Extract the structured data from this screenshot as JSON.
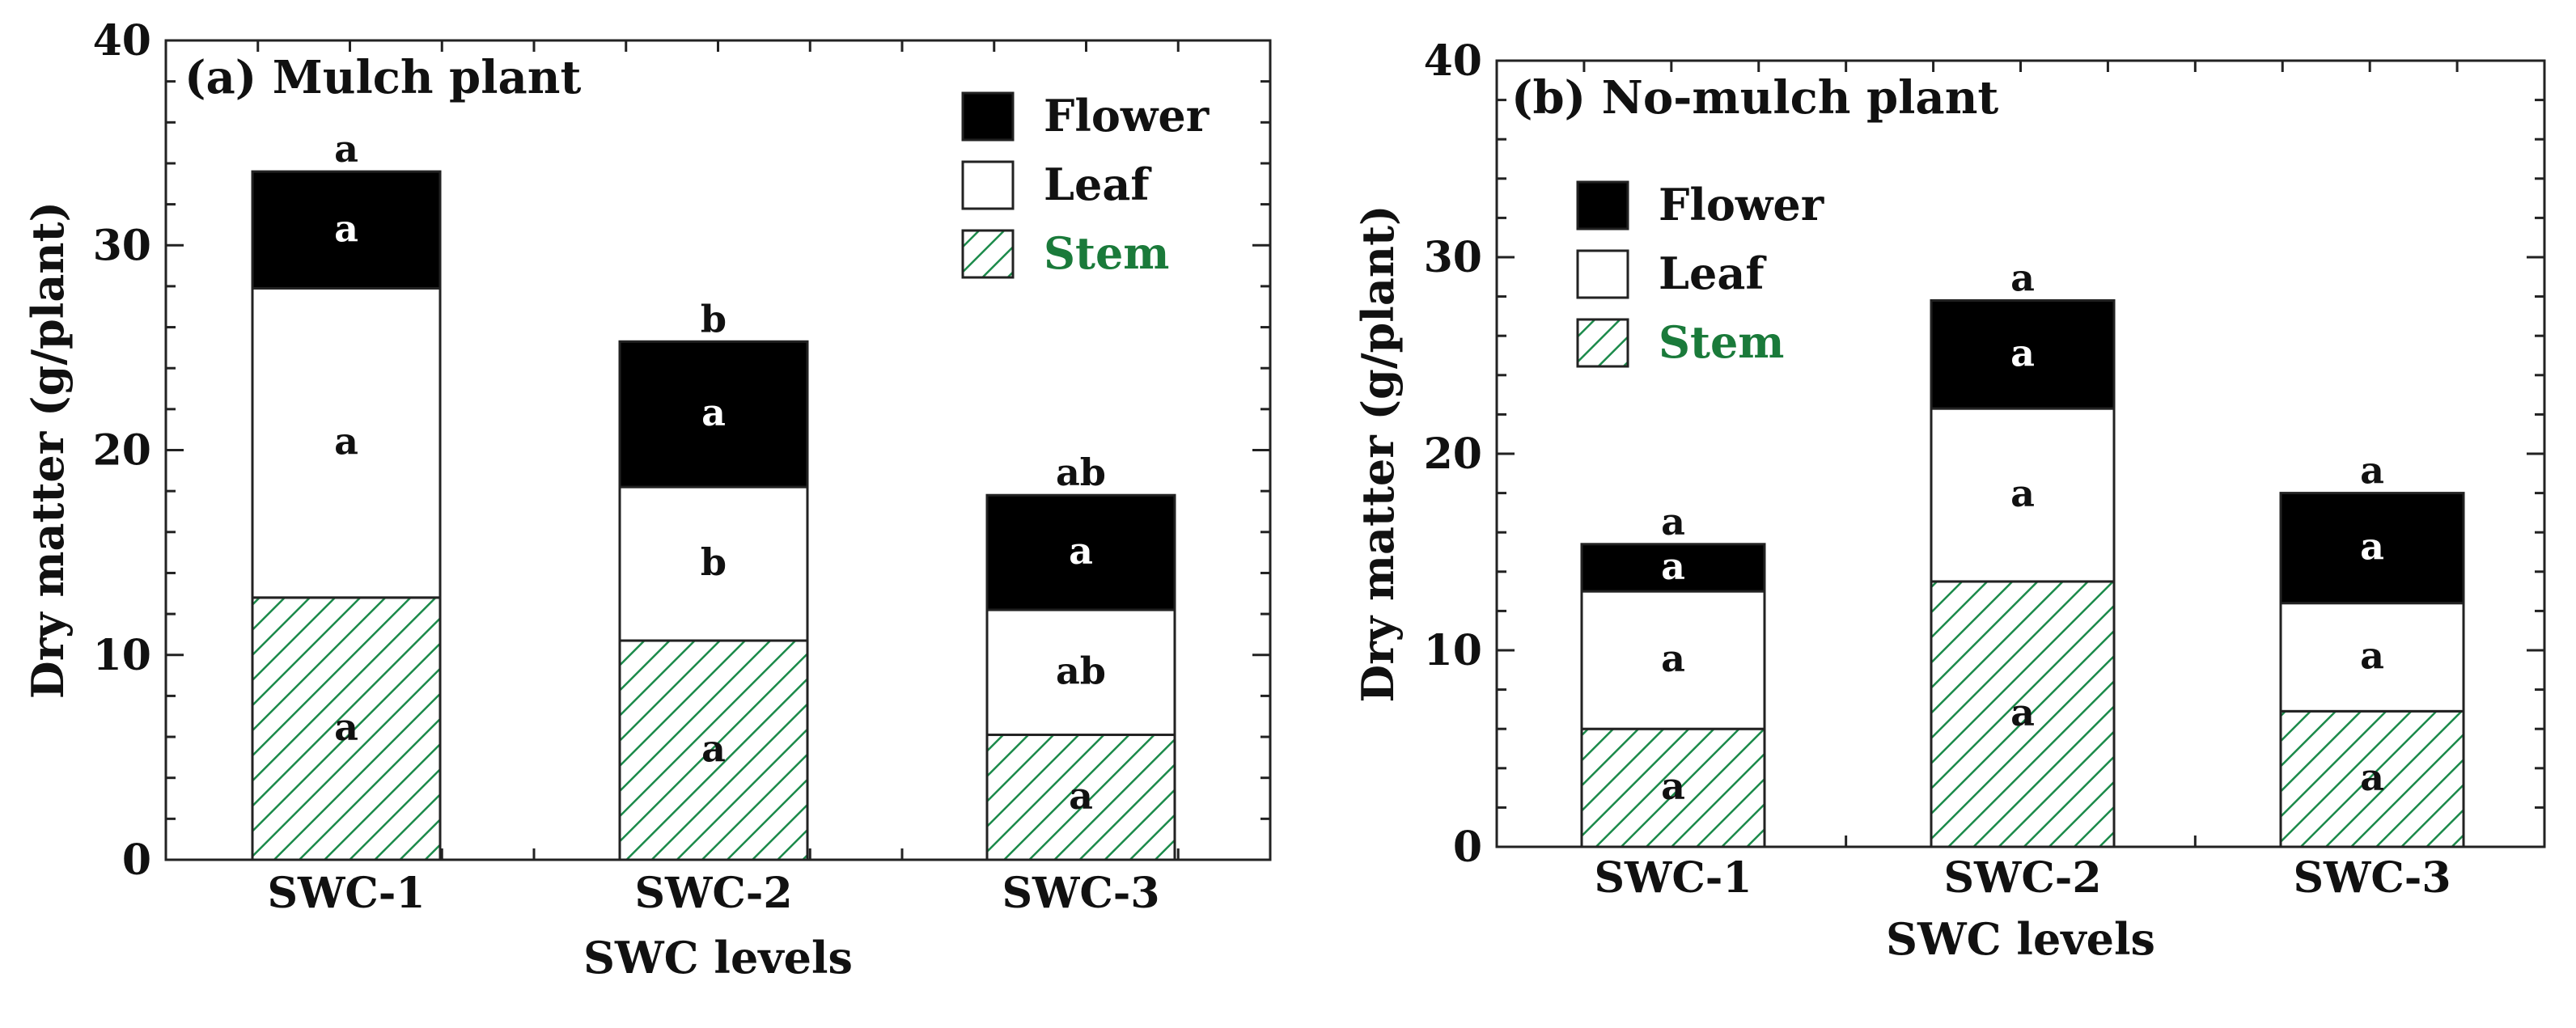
{
  "colors": {
    "flower": "#000000",
    "leaf": "#ffffff",
    "stem_hatch": "#1b8a4a",
    "stem_legend_text": "#1a7a3a",
    "outline": "#222222"
  },
  "chart_data": [
    {
      "type": "bar",
      "stacked": true,
      "title": "(a)  Mulch plant",
      "xlabel": "SWC levels",
      "ylabel": "Dry matter (g/plant)",
      "ylim": [
        0,
        40
      ],
      "yticks": [
        "0",
        "10",
        "20",
        "30",
        "40"
      ],
      "categories": [
        "SWC-1",
        "SWC-2",
        "SWC-3"
      ],
      "series": [
        {
          "name": "Stem",
          "values": [
            12.8,
            10.7,
            6.1
          ],
          "labels": [
            "a",
            "a",
            "a"
          ]
        },
        {
          "name": "Leaf",
          "values": [
            15.1,
            7.5,
            6.1
          ],
          "labels": [
            "a",
            "b",
            "ab"
          ]
        },
        {
          "name": "Flower",
          "values": [
            5.7,
            7.1,
            5.6
          ],
          "labels": [
            "a",
            "a",
            "a"
          ]
        }
      ],
      "total_labels": [
        "a",
        "b",
        "ab"
      ],
      "legend": [
        "Flower",
        "Leaf",
        "Stem"
      ],
      "legend_position": "top-right"
    },
    {
      "type": "bar",
      "stacked": true,
      "title": "(b) No-mulch plant",
      "xlabel": "SWC levels",
      "ylabel": "Dry matter (g/plant)",
      "ylim": [
        0,
        40
      ],
      "yticks": [
        "0",
        "10",
        "20",
        "30",
        "40"
      ],
      "categories": [
        "SWC-1",
        "SWC-2",
        "SWC-3"
      ],
      "series": [
        {
          "name": "Stem",
          "values": [
            6.0,
            13.5,
            6.9
          ],
          "labels": [
            "a",
            "a",
            "a"
          ]
        },
        {
          "name": "Leaf",
          "values": [
            7.0,
            8.8,
            5.5
          ],
          "labels": [
            "a",
            "a",
            "a"
          ]
        },
        {
          "name": "Flower",
          "values": [
            2.4,
            5.5,
            5.6
          ],
          "labels": [
            "a",
            "a",
            "a"
          ]
        }
      ],
      "total_labels": [
        "a",
        "a",
        "a"
      ],
      "legend": [
        "Flower",
        "Leaf",
        "Stem"
      ],
      "legend_position": "top-left"
    }
  ]
}
